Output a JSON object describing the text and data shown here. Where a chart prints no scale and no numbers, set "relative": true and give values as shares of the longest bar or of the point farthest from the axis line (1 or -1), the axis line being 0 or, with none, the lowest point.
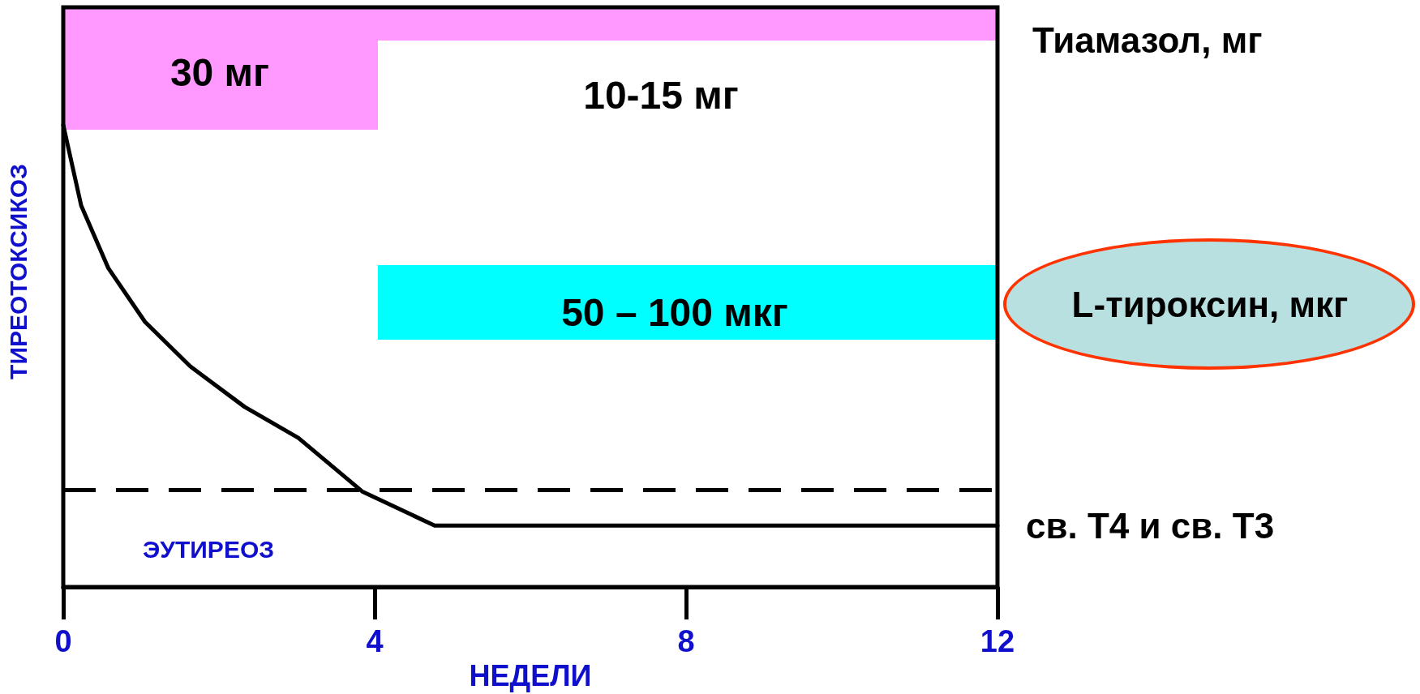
{
  "chart_data": {
    "type": "line",
    "relative": true,
    "xlabel": "НЕДЕЛИ",
    "ylabel": "ТИРЕОТОКСИКОЗ",
    "xlim": [
      0,
      12
    ],
    "xticks": [
      0,
      4,
      8,
      12
    ],
    "grid": false,
    "legend": false,
    "marker": "none",
    "line_style": "solid",
    "series": [
      {
        "name": "св. Т4 и св. Т3",
        "color": "#000000",
        "x": [
          0,
          0.23,
          0.58,
          1.05,
          1.63,
          2.33,
          3.02,
          3.84,
          4.77,
          12
        ],
        "values": [
          1,
          0.826,
          0.69,
          0.574,
          0.478,
          0.39,
          0.323,
          0.207,
          0.133,
          0.133
        ]
      }
    ],
    "ref_lines": [
      {
        "axis": "y",
        "value": 0.207,
        "color": "#000000",
        "line_style": "dashed"
      }
    ],
    "annotations": [
      "30 мг",
      "10-15 мг",
      "50 – 100 мкг",
      "Тиамазол, мг",
      "L-тироксин, мкг",
      "ЭУТИРЕОЗ"
    ]
  }
}
